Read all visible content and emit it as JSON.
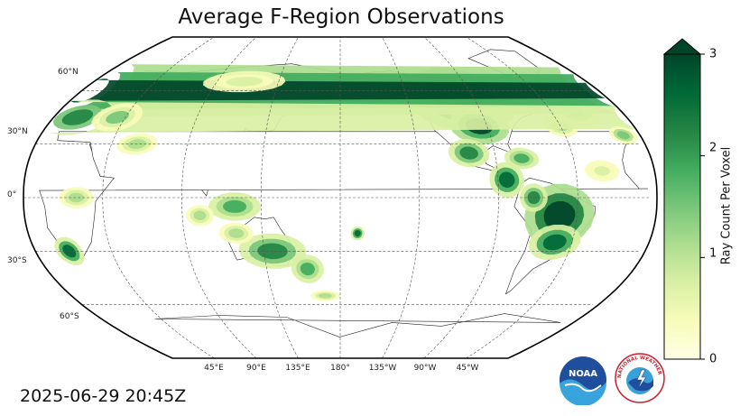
{
  "title": "Average F-Region Observations",
  "timestamp": "2025-06-29 20:45Z",
  "map": {
    "projection": "robinson",
    "central_longitude": 180,
    "lat_labels": [
      "60°N",
      "30°N",
      "0°",
      "30°S",
      "60°S"
    ],
    "lon_labels": [
      "45°E",
      "90°E",
      "135°E",
      "180°",
      "135°W",
      "90°W",
      "45°W"
    ],
    "gridlines": true
  },
  "colorbar": {
    "label": "Ray Count Per Voxel",
    "ticks": [
      "0",
      "1",
      "2",
      "3"
    ],
    "min": 0,
    "max": 3,
    "extend": "max",
    "colors": [
      "#ffffe5",
      "#f7fcb9",
      "#d9f0a3",
      "#addd8e",
      "#78c679",
      "#41ab5d",
      "#238443",
      "#006837",
      "#004529"
    ]
  },
  "logos": {
    "noaa_text": "NOAA",
    "nws_text": "NATIONAL WEATHER SERVICE"
  }
}
